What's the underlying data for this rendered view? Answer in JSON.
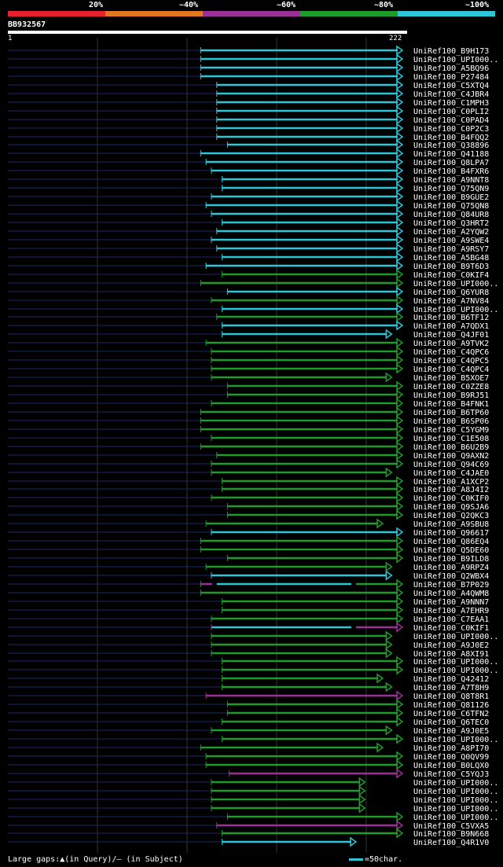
{
  "header": {
    "query_id": "BB932567",
    "query_start": "1",
    "query_end": "222",
    "percent_labels": [
      "20%",
      "~40%",
      "~60%",
      "~80%",
      "~100%"
    ]
  },
  "colors": {
    "band_20": "#e8202e",
    "band_40": "#e07820",
    "band_60": "#9b3096",
    "band_80": "#1e9c2a",
    "band_100": "#2bc7d8",
    "background": "#000000",
    "unaligned_line": "#1a2a66"
  },
  "footer": {
    "gaps_text": "Large gaps:▲(in Query)/– (in Subject)",
    "scale_text": "=50char."
  },
  "chart_data": {
    "type": "alignment-overview",
    "query_length": 222,
    "hits": [
      {
        "name": "UniRef100_B9H173",
        "start": 109,
        "end": 222,
        "color": "cyan"
      },
      {
        "name": "UniRef100_UPI000..",
        "start": 109,
        "end": 222,
        "color": "cyan"
      },
      {
        "name": "UniRef100_A5BQ96",
        "start": 109,
        "end": 222,
        "color": "cyan"
      },
      {
        "name": "UniRef100_P27484",
        "start": 109,
        "end": 222,
        "color": "cyan"
      },
      {
        "name": "UniRef100_C5XTQ4",
        "start": 118,
        "end": 222,
        "color": "cyan"
      },
      {
        "name": "UniRef100_C4JBR4",
        "start": 118,
        "end": 222,
        "color": "cyan"
      },
      {
        "name": "UniRef100_C1MPH3",
        "start": 118,
        "end": 222,
        "color": "cyan"
      },
      {
        "name": "UniRef100_C0PLI2",
        "start": 118,
        "end": 222,
        "color": "cyan"
      },
      {
        "name": "UniRef100_C0PAD4",
        "start": 118,
        "end": 222,
        "color": "cyan"
      },
      {
        "name": "UniRef100_C0P2C3",
        "start": 118,
        "end": 222,
        "color": "cyan"
      },
      {
        "name": "UniRef100_B4FQQ2",
        "start": 118,
        "end": 222,
        "color": "cyan"
      },
      {
        "name": "UniRef100_Q38896",
        "start": 124,
        "end": 222,
        "color": "cyan"
      },
      {
        "name": "UniRef100_Q41188",
        "start": 109,
        "end": 222,
        "color": "cyan"
      },
      {
        "name": "UniRef100_Q8LPA7",
        "start": 112,
        "end": 222,
        "color": "cyan"
      },
      {
        "name": "UniRef100_B4FXR6",
        "start": 115,
        "end": 222,
        "color": "cyan"
      },
      {
        "name": "UniRef100_A9NNT8",
        "start": 121,
        "end": 222,
        "color": "cyan"
      },
      {
        "name": "UniRef100_Q75QN9",
        "start": 121,
        "end": 222,
        "color": "cyan"
      },
      {
        "name": "UniRef100_B9GUE2",
        "start": 115,
        "end": 222,
        "color": "cyan"
      },
      {
        "name": "UniRef100_Q75QN8",
        "start": 112,
        "end": 222,
        "color": "cyan"
      },
      {
        "name": "UniRef100_Q84UR8",
        "start": 115,
        "end": 222,
        "color": "cyan"
      },
      {
        "name": "UniRef100_Q3HRT2",
        "start": 121,
        "end": 222,
        "color": "cyan"
      },
      {
        "name": "UniRef100_A2YQW2",
        "start": 118,
        "end": 222,
        "color": "cyan"
      },
      {
        "name": "UniRef100_A9SWE4",
        "start": 115,
        "end": 222,
        "color": "cyan"
      },
      {
        "name": "UniRef100_A9RSY7",
        "start": 118,
        "end": 222,
        "color": "cyan"
      },
      {
        "name": "UniRef100_A5BG48",
        "start": 121,
        "end": 222,
        "color": "cyan"
      },
      {
        "name": "UniRef100_B9T6D3",
        "start": 112,
        "end": 222,
        "color": "cyan"
      },
      {
        "name": "UniRef100_C0KIF4",
        "start": 121,
        "end": 222,
        "color": "green"
      },
      {
        "name": "UniRef100_UPI000..",
        "start": 109,
        "end": 222,
        "color": "green"
      },
      {
        "name": "UniRef100_Q6YUR8",
        "start": 124,
        "end": 222,
        "color": "cyan"
      },
      {
        "name": "UniRef100_A7NV84",
        "start": 115,
        "end": 222,
        "color": "green"
      },
      {
        "name": "UniRef100_UPI000..",
        "start": 121,
        "end": 222,
        "color": "cyan"
      },
      {
        "name": "UniRef100_B6TF12",
        "start": 118,
        "end": 222,
        "color": "green"
      },
      {
        "name": "UniRef100_A7QDX1",
        "start": 121,
        "end": 222,
        "color": "cyan"
      },
      {
        "name": "UniRef100_Q4JF01",
        "start": 121,
        "end": 216,
        "color": "cyan"
      },
      {
        "name": "UniRef100_A9TVK2",
        "start": 112,
        "end": 222,
        "color": "green"
      },
      {
        "name": "UniRef100_C4QPC6",
        "start": 115,
        "end": 222,
        "color": "green"
      },
      {
        "name": "UniRef100_C4QPC5",
        "start": 115,
        "end": 222,
        "color": "green"
      },
      {
        "name": "UniRef100_C4QPC4",
        "start": 115,
        "end": 222,
        "color": "green"
      },
      {
        "name": "UniRef100_B5XOE7",
        "start": 115,
        "end": 216,
        "color": "green"
      },
      {
        "name": "UniRef100_C0ZZE8",
        "start": 124,
        "end": 222,
        "color": "green"
      },
      {
        "name": "UniRef100_B9RJ51",
        "start": 124,
        "end": 222,
        "color": "green"
      },
      {
        "name": "UniRef100_B4FNK1",
        "start": 115,
        "end": 222,
        "color": "green"
      },
      {
        "name": "UniRef100_B6TP60",
        "start": 109,
        "end": 222,
        "color": "green"
      },
      {
        "name": "UniRef100_B6SP06",
        "start": 109,
        "end": 222,
        "color": "green"
      },
      {
        "name": "UniRef100_C5YGM9",
        "start": 109,
        "end": 222,
        "color": "green"
      },
      {
        "name": "UniRef100_C1E508",
        "start": 115,
        "end": 222,
        "color": "green"
      },
      {
        "name": "UniRef100_B6U2B9",
        "start": 109,
        "end": 222,
        "color": "green"
      },
      {
        "name": "UniRef100_Q9AXN2",
        "start": 118,
        "end": 222,
        "color": "green"
      },
      {
        "name": "UniRef100_Q94C69",
        "start": 115,
        "end": 222,
        "color": "green"
      },
      {
        "name": "UniRef100_C4JAE0",
        "start": 115,
        "end": 216,
        "color": "green"
      },
      {
        "name": "UniRef100_A1XCP2",
        "start": 121,
        "end": 222,
        "color": "green"
      },
      {
        "name": "UniRef100_A8J4I2",
        "start": 121,
        "end": 222,
        "color": "green"
      },
      {
        "name": "UniRef100_C0KIF0",
        "start": 115,
        "end": 222,
        "color": "green"
      },
      {
        "name": "UniRef100_Q9SJA6",
        "start": 124,
        "end": 222,
        "color": "green"
      },
      {
        "name": "UniRef100_Q2QKC3",
        "start": 124,
        "end": 222,
        "color": "green"
      },
      {
        "name": "UniRef100_A9SBU8",
        "start": 112,
        "end": 211,
        "color": "green"
      },
      {
        "name": "UniRef100_Q96617",
        "start": 115,
        "end": 222,
        "color": "cyan"
      },
      {
        "name": "UniRef100_Q86EQ4",
        "start": 109,
        "end": 222,
        "color": "green"
      },
      {
        "name": "UniRef100_Q5DE60",
        "start": 109,
        "end": 222,
        "color": "green"
      },
      {
        "name": "UniRef100_B9ILD8",
        "start": 124,
        "end": 222,
        "color": "green"
      },
      {
        "name": "UniRef100_A9RPZ4",
        "start": 112,
        "end": 216,
        "color": "green"
      },
      {
        "name": "UniRef100_Q2WBX4",
        "start": 115,
        "end": 216,
        "color": "cyan"
      },
      {
        "name": "UniRef100_B7P029",
        "start": 109,
        "end": 222,
        "color": "mixed",
        "mixed": [
          [
            "magenta",
            109,
            118
          ],
          [
            "cyan",
            118,
            196
          ],
          [
            "green",
            196,
            222
          ]
        ]
      },
      {
        "name": "UniRef100_A4QWM8",
        "start": 109,
        "end": 222,
        "color": "green"
      },
      {
        "name": "UniRef100_A9NNN7",
        "start": 121,
        "end": 222,
        "color": "green"
      },
      {
        "name": "UniRef100_A7EHR9",
        "start": 121,
        "end": 222,
        "color": "green"
      },
      {
        "name": "UniRef100_C7EAA1",
        "start": 115,
        "end": 222,
        "color": "green"
      },
      {
        "name": "UniRef100_C0KIF1",
        "start": 115,
        "end": 222,
        "color": "mixed",
        "mixed": [
          [
            "cyan",
            115,
            196
          ],
          [
            "magenta",
            196,
            222
          ]
        ]
      },
      {
        "name": "UniRef100_UPI000..",
        "start": 115,
        "end": 216,
        "color": "green"
      },
      {
        "name": "UniRef100_A9J0E2",
        "start": 115,
        "end": 216,
        "color": "green"
      },
      {
        "name": "UniRef100_A8XI91",
        "start": 115,
        "end": 216,
        "color": "green"
      },
      {
        "name": "UniRef100_UPI000..",
        "start": 121,
        "end": 222,
        "color": "green"
      },
      {
        "name": "UniRef100_UPI000..",
        "start": 121,
        "end": 222,
        "color": "green"
      },
      {
        "name": "UniRef100_Q42412",
        "start": 121,
        "end": 211,
        "color": "green"
      },
      {
        "name": "UniRef100_A7T8H9",
        "start": 121,
        "end": 216,
        "color": "green"
      },
      {
        "name": "UniRef100_Q8T8R1",
        "start": 112,
        "end": 222,
        "color": "magenta"
      },
      {
        "name": "UniRef100_Q81126",
        "start": 124,
        "end": 222,
        "color": "green"
      },
      {
        "name": "UniRef100_C6TFN2",
        "start": 124,
        "end": 222,
        "color": "green"
      },
      {
        "name": "UniRef100_Q6TEC0",
        "start": 121,
        "end": 222,
        "color": "green"
      },
      {
        "name": "UniRef100_A9J0E5",
        "start": 115,
        "end": 216,
        "color": "green"
      },
      {
        "name": "UniRef100_UPI000..",
        "start": 121,
        "end": 222,
        "color": "green"
      },
      {
        "name": "UniRef100_A8PI70",
        "start": 109,
        "end": 211,
        "color": "green"
      },
      {
        "name": "UniRef100_Q0QV99",
        "start": 112,
        "end": 222,
        "color": "green"
      },
      {
        "name": "UniRef100_B0LQX0",
        "start": 112,
        "end": 222,
        "color": "green"
      },
      {
        "name": "UniRef100_C5YQJ3",
        "start": 125,
        "end": 222,
        "color": "magenta"
      },
      {
        "name": "UniRef100_UPI000..",
        "start": 115,
        "end": 201,
        "color": "green"
      },
      {
        "name": "UniRef100_UPI000..",
        "start": 115,
        "end": 201,
        "color": "green"
      },
      {
        "name": "UniRef100_UPI000..",
        "start": 115,
        "end": 201,
        "color": "green"
      },
      {
        "name": "UniRef100_UPI000..",
        "start": 115,
        "end": 201,
        "color": "green"
      },
      {
        "name": "UniRef100_UPI000..",
        "start": 124,
        "end": 222,
        "color": "green"
      },
      {
        "name": "UniRef100_C5VXA5",
        "start": 118,
        "end": 222,
        "color": "magenta"
      },
      {
        "name": "UniRef100_B9N668",
        "start": 121,
        "end": 222,
        "color": "green"
      },
      {
        "name": "UniRef100_Q4R1V0",
        "start": 121,
        "end": 196,
        "color": "cyan"
      }
    ]
  }
}
